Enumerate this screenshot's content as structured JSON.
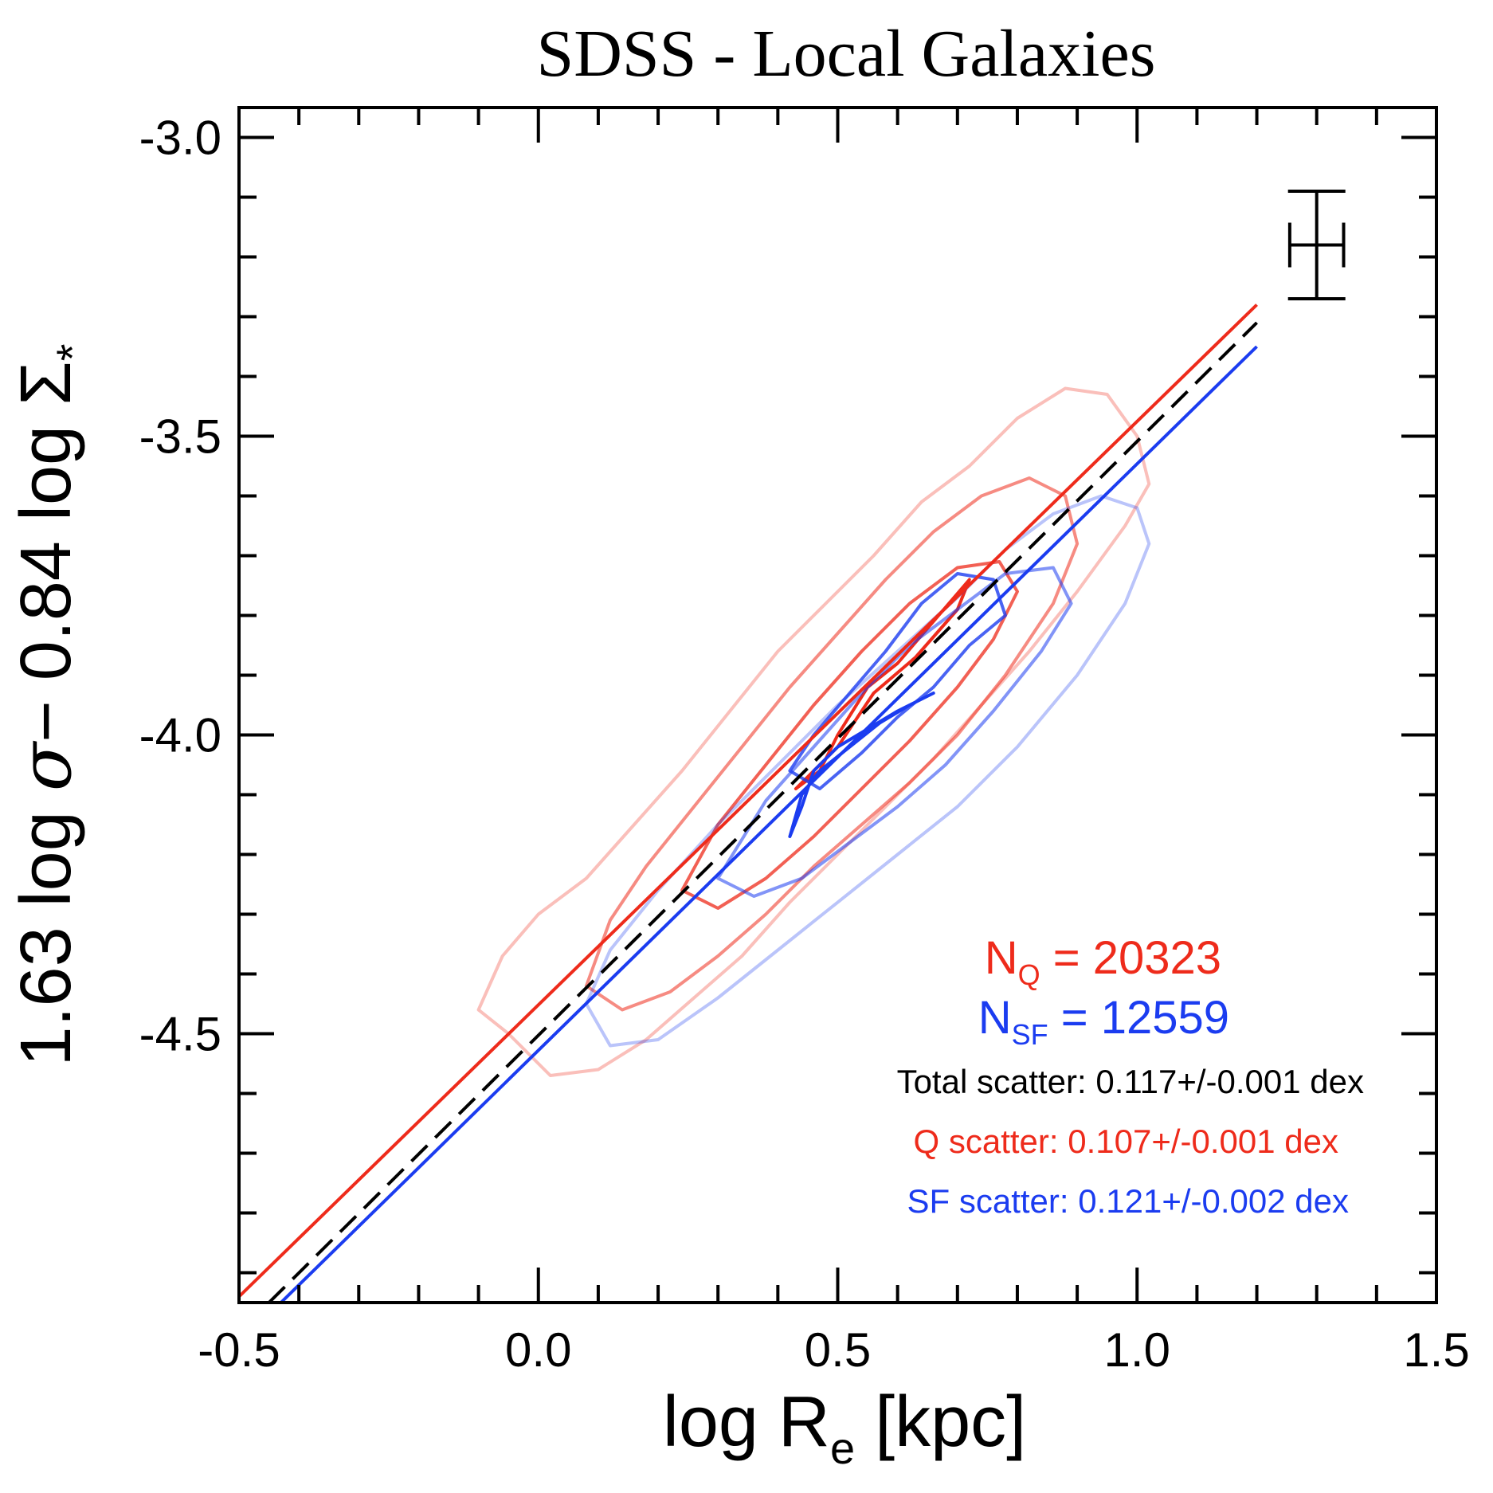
{
  "chart_data": {
    "type": "scatter",
    "title": "SDSS - Local Galaxies",
    "xlabel": {
      "main": "log R",
      "sub": "e",
      "unit": " [kpc]"
    },
    "ylabel": {
      "part1": "1.63 log ",
      "sigma": "σ",
      "part2": "− 0.84 log ",
      "Sigma": "Σ",
      "star": "*"
    },
    "xlim": [
      -0.5,
      1.5
    ],
    "ylim": [
      -4.95,
      -2.95
    ],
    "xticks": [
      -0.5,
      0.0,
      0.5,
      1.0,
      1.5
    ],
    "xtick_labels": [
      "-0.5",
      "0.0",
      "0.5",
      "1.0",
      "1.5"
    ],
    "yticks": [
      -3.0,
      -3.5,
      -4.0,
      -4.5
    ],
    "ytick_labels": [
      "-3.0",
      "-3.5",
      "-4.0",
      "-4.5"
    ],
    "x_minor_step": 0.1,
    "y_minor_step": 0.1,
    "colors": {
      "quiescent": "#ee2b1b",
      "star_forming": "#1b3cf0",
      "total": "#000000"
    },
    "fit_lines": [
      {
        "group": "quiescent",
        "style": "solid",
        "x": [
          -0.5,
          1.2
        ],
        "y": [
          -4.94,
          -3.28
        ]
      },
      {
        "group": "total",
        "style": "dashed",
        "x": [
          -0.45,
          1.2
        ],
        "y": [
          -4.95,
          -3.31
        ]
      },
      {
        "group": "star_forming",
        "style": "solid",
        "x": [
          -0.43,
          1.2
        ],
        "y": [
          -4.95,
          -3.35
        ]
      }
    ],
    "contours": [
      {
        "group": "quiescent",
        "level": 1,
        "opacity": 0.3,
        "points": [
          [
            -0.1,
            -4.46
          ],
          [
            -0.05,
            -4.5
          ],
          [
            0.02,
            -4.57
          ],
          [
            0.1,
            -4.56
          ],
          [
            0.18,
            -4.51
          ],
          [
            0.26,
            -4.44
          ],
          [
            0.34,
            -4.37
          ],
          [
            0.42,
            -4.28
          ],
          [
            0.5,
            -4.2
          ],
          [
            0.58,
            -4.12
          ],
          [
            0.66,
            -4.04
          ],
          [
            0.74,
            -3.95
          ],
          [
            0.82,
            -3.86
          ],
          [
            0.9,
            -3.76
          ],
          [
            0.98,
            -3.65
          ],
          [
            1.02,
            -3.58
          ],
          [
            1.0,
            -3.5
          ],
          [
            0.95,
            -3.43
          ],
          [
            0.88,
            -3.42
          ],
          [
            0.8,
            -3.47
          ],
          [
            0.72,
            -3.55
          ],
          [
            0.64,
            -3.61
          ],
          [
            0.56,
            -3.7
          ],
          [
            0.48,
            -3.78
          ],
          [
            0.4,
            -3.86
          ],
          [
            0.32,
            -3.96
          ],
          [
            0.24,
            -4.06
          ],
          [
            0.16,
            -4.15
          ],
          [
            0.08,
            -4.24
          ],
          [
            0.0,
            -4.3
          ],
          [
            -0.06,
            -4.37
          ]
        ]
      },
      {
        "group": "quiescent",
        "level": 2,
        "opacity": 0.55,
        "points": [
          [
            0.08,
            -4.42
          ],
          [
            0.14,
            -4.46
          ],
          [
            0.22,
            -4.43
          ],
          [
            0.3,
            -4.37
          ],
          [
            0.38,
            -4.3
          ],
          [
            0.46,
            -4.22
          ],
          [
            0.54,
            -4.15
          ],
          [
            0.62,
            -4.08
          ],
          [
            0.7,
            -4.0
          ],
          [
            0.78,
            -3.9
          ],
          [
            0.86,
            -3.78
          ],
          [
            0.9,
            -3.68
          ],
          [
            0.88,
            -3.6
          ],
          [
            0.82,
            -3.57
          ],
          [
            0.74,
            -3.6
          ],
          [
            0.66,
            -3.66
          ],
          [
            0.58,
            -3.74
          ],
          [
            0.5,
            -3.83
          ],
          [
            0.42,
            -3.92
          ],
          [
            0.34,
            -4.02
          ],
          [
            0.26,
            -4.12
          ],
          [
            0.18,
            -4.22
          ],
          [
            0.12,
            -4.31
          ]
        ]
      },
      {
        "group": "quiescent",
        "level": 3,
        "opacity": 0.75,
        "points": [
          [
            0.24,
            -4.26
          ],
          [
            0.3,
            -4.29
          ],
          [
            0.38,
            -4.24
          ],
          [
            0.46,
            -4.17
          ],
          [
            0.54,
            -4.09
          ],
          [
            0.62,
            -4.01
          ],
          [
            0.7,
            -3.92
          ],
          [
            0.76,
            -3.84
          ],
          [
            0.8,
            -3.76
          ],
          [
            0.77,
            -3.71
          ],
          [
            0.7,
            -3.72
          ],
          [
            0.62,
            -3.78
          ],
          [
            0.54,
            -3.86
          ],
          [
            0.46,
            -3.95
          ],
          [
            0.38,
            -4.05
          ],
          [
            0.3,
            -4.15
          ]
        ]
      },
      {
        "group": "quiescent",
        "level": 4,
        "opacity": 1.0,
        "points": [
          [
            0.43,
            -4.09
          ],
          [
            0.47,
            -4.06
          ],
          [
            0.5,
            -4.0
          ],
          [
            0.55,
            -3.92
          ],
          [
            0.6,
            -3.88
          ],
          [
            0.66,
            -3.81
          ],
          [
            0.72,
            -3.74
          ],
          [
            0.7,
            -3.79
          ],
          [
            0.63,
            -3.87
          ],
          [
            0.56,
            -3.93
          ],
          [
            0.5,
            -4.02
          ],
          [
            0.45,
            -4.07
          ]
        ]
      },
      {
        "group": "star_forming",
        "level": 1,
        "opacity": 0.3,
        "points": [
          [
            0.08,
            -4.45
          ],
          [
            0.12,
            -4.52
          ],
          [
            0.2,
            -4.51
          ],
          [
            0.3,
            -4.44
          ],
          [
            0.4,
            -4.36
          ],
          [
            0.5,
            -4.28
          ],
          [
            0.6,
            -4.2
          ],
          [
            0.7,
            -4.12
          ],
          [
            0.8,
            -4.02
          ],
          [
            0.9,
            -3.9
          ],
          [
            0.98,
            -3.78
          ],
          [
            1.02,
            -3.68
          ],
          [
            1.0,
            -3.62
          ],
          [
            0.94,
            -3.6
          ],
          [
            0.86,
            -3.63
          ],
          [
            0.78,
            -3.69
          ],
          [
            0.7,
            -3.77
          ],
          [
            0.6,
            -3.86
          ],
          [
            0.5,
            -3.95
          ],
          [
            0.4,
            -4.05
          ],
          [
            0.3,
            -4.15
          ],
          [
            0.2,
            -4.26
          ],
          [
            0.12,
            -4.36
          ]
        ]
      },
      {
        "group": "star_forming",
        "level": 2,
        "opacity": 0.55,
        "points": [
          [
            0.3,
            -4.24
          ],
          [
            0.36,
            -4.27
          ],
          [
            0.44,
            -4.24
          ],
          [
            0.52,
            -4.18
          ],
          [
            0.6,
            -4.12
          ],
          [
            0.68,
            -4.05
          ],
          [
            0.76,
            -3.96
          ],
          [
            0.84,
            -3.86
          ],
          [
            0.89,
            -3.78
          ],
          [
            0.86,
            -3.72
          ],
          [
            0.78,
            -3.73
          ],
          [
            0.7,
            -3.79
          ],
          [
            0.62,
            -3.85
          ],
          [
            0.54,
            -3.93
          ],
          [
            0.46,
            -4.02
          ],
          [
            0.38,
            -4.11
          ]
        ]
      },
      {
        "group": "star_forming",
        "level": 3,
        "opacity": 0.8,
        "points": [
          [
            0.42,
            -4.06
          ],
          [
            0.47,
            -4.09
          ],
          [
            0.54,
            -4.03
          ],
          [
            0.6,
            -3.97
          ],
          [
            0.66,
            -3.92
          ],
          [
            0.72,
            -3.85
          ],
          [
            0.78,
            -3.8
          ],
          [
            0.76,
            -3.74
          ],
          [
            0.7,
            -3.73
          ],
          [
            0.64,
            -3.78
          ],
          [
            0.58,
            -3.86
          ],
          [
            0.52,
            -3.93
          ],
          [
            0.46,
            -4.0
          ]
        ]
      },
      {
        "group": "star_forming",
        "level": 4,
        "opacity": 1.0,
        "points": [
          [
            0.42,
            -4.17
          ],
          [
            0.44,
            -4.12
          ],
          [
            0.46,
            -4.06
          ],
          [
            0.5,
            -4.02
          ],
          [
            0.55,
            -3.99
          ],
          [
            0.6,
            -3.96
          ],
          [
            0.66,
            -3.93
          ],
          [
            0.62,
            -3.95
          ],
          [
            0.57,
            -3.98
          ],
          [
            0.52,
            -4.02
          ],
          [
            0.47,
            -4.06
          ],
          [
            0.44,
            -4.1
          ]
        ]
      }
    ],
    "error_bar": {
      "x": 1.3,
      "y": -3.18,
      "xerr": 0.045,
      "yerr": 0.09
    },
    "annotations": {
      "n_q": {
        "prefix": "N",
        "sub": "Q",
        "value": " = 20323"
      },
      "n_sf": {
        "prefix": "N",
        "sub": "SF",
        "value": " = 12559"
      },
      "total_scatter": "Total scatter: 0.117+/-0.001 dex",
      "q_scatter": "Q scatter: 0.107+/-0.001 dex",
      "sf_scatter": "SF scatter: 0.121+/-0.002 dex"
    }
  }
}
